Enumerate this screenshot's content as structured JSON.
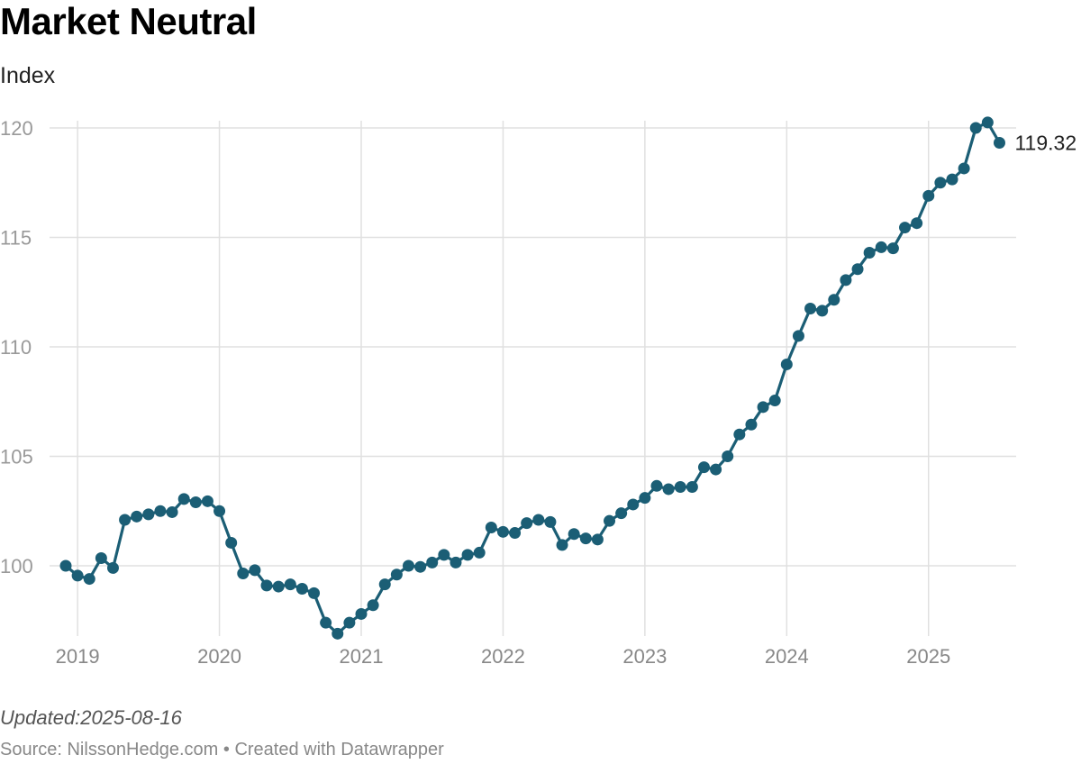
{
  "header": {
    "title": "Market Neutral",
    "subtitle": "Index"
  },
  "footer": {
    "updated": "Updated:2025-08-16",
    "source": "Source: NilssonHedge.com • Created with Datawrapper"
  },
  "colors": {
    "series": "#1b5e75",
    "grid": "#e0e0e0"
  },
  "chart_data": {
    "type": "line",
    "title": "Market Neutral",
    "subtitle": "Index",
    "xlabel": "",
    "ylabel": "",
    "y_ticks": [
      100,
      105,
      110,
      115,
      120
    ],
    "x_ticks": [
      "2019",
      "2020",
      "2021",
      "2022",
      "2023",
      "2024",
      "2025"
    ],
    "x_range": [
      "2018-12",
      "2025-07"
    ],
    "ylim": [
      96.9,
      120.2
    ],
    "grid": true,
    "markers": true,
    "last_value_label": "119.32",
    "series": [
      {
        "x": [
          "2018-12",
          "2019-01",
          "2019-02",
          "2019-03",
          "2019-04",
          "2019-05",
          "2019-06",
          "2019-07",
          "2019-08",
          "2019-09",
          "2019-10",
          "2019-11",
          "2019-12",
          "2020-01",
          "2020-02",
          "2020-03",
          "2020-04",
          "2020-05",
          "2020-06",
          "2020-07",
          "2020-08",
          "2020-09",
          "2020-10",
          "2020-11",
          "2020-12",
          "2021-01",
          "2021-02",
          "2021-03",
          "2021-04",
          "2021-05",
          "2021-06",
          "2021-07",
          "2021-08",
          "2021-09",
          "2021-10",
          "2021-11",
          "2021-12",
          "2022-01",
          "2022-02",
          "2022-03",
          "2022-04",
          "2022-05",
          "2022-06",
          "2022-07",
          "2022-08",
          "2022-09",
          "2022-10",
          "2022-11",
          "2022-12",
          "2023-01",
          "2023-02",
          "2023-03",
          "2023-04",
          "2023-05",
          "2023-06",
          "2023-07",
          "2023-08",
          "2023-09",
          "2023-10",
          "2023-11",
          "2023-12",
          "2024-01",
          "2024-02",
          "2024-03",
          "2024-04",
          "2024-05",
          "2024-06",
          "2024-07",
          "2024-08",
          "2024-09",
          "2024-10",
          "2024-11",
          "2024-12",
          "2025-01",
          "2025-02",
          "2025-03",
          "2025-04",
          "2025-05",
          "2025-06",
          "2025-07"
        ],
        "values": [
          100.0,
          99.55,
          99.4,
          100.35,
          99.9,
          102.1,
          102.25,
          102.35,
          102.5,
          102.45,
          103.05,
          102.9,
          102.95,
          102.5,
          101.05,
          99.65,
          99.8,
          99.1,
          99.05,
          99.15,
          98.95,
          98.75,
          97.4,
          96.9,
          97.4,
          97.8,
          98.2,
          99.15,
          99.6,
          100.0,
          99.95,
          100.15,
          100.5,
          100.15,
          100.5,
          100.6,
          101.75,
          101.55,
          101.5,
          101.95,
          102.1,
          102.0,
          100.95,
          101.45,
          101.25,
          101.2,
          102.05,
          102.4,
          102.8,
          103.1,
          103.65,
          103.5,
          103.6,
          103.6,
          104.5,
          104.4,
          105.0,
          106.0,
          106.45,
          107.25,
          107.55,
          109.2,
          110.5,
          111.75,
          111.65,
          112.15,
          113.05,
          113.55,
          114.3,
          114.55,
          114.5,
          115.45,
          115.65,
          116.9,
          117.5,
          117.65,
          118.15,
          120.0,
          120.25,
          119.32
        ]
      }
    ]
  }
}
